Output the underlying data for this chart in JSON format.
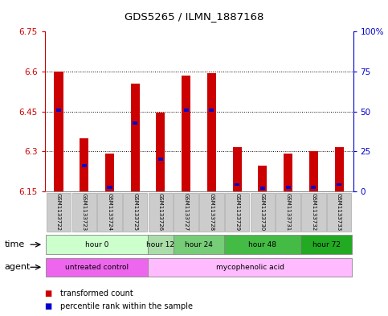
{
  "title": "GDS5265 / ILMN_1887168",
  "samples": [
    "GSM1133722",
    "GSM1133723",
    "GSM1133724",
    "GSM1133725",
    "GSM1133726",
    "GSM1133727",
    "GSM1133728",
    "GSM1133729",
    "GSM1133730",
    "GSM1133731",
    "GSM1133732",
    "GSM1133733"
  ],
  "red_values": [
    6.6,
    6.35,
    6.29,
    6.555,
    6.445,
    6.585,
    6.595,
    6.315,
    6.245,
    6.29,
    6.3,
    6.315
  ],
  "blue_values": [
    6.455,
    6.245,
    6.165,
    6.405,
    6.27,
    6.455,
    6.455,
    6.175,
    6.16,
    6.165,
    6.165,
    6.175
  ],
  "ymin": 6.15,
  "ymax": 6.75,
  "yticks": [
    6.15,
    6.3,
    6.45,
    6.6,
    6.75
  ],
  "ytick_labels": [
    "6.15",
    "6.3",
    "6.45",
    "6.6",
    "6.75"
  ],
  "right_yticks": [
    0,
    25,
    50,
    75,
    100
  ],
  "right_ytick_labels": [
    "0",
    "25",
    "50",
    "75",
    "100%"
  ],
  "dotted_lines": [
    6.3,
    6.45,
    6.6
  ],
  "red_color": "#cc0000",
  "blue_color": "#0000cc",
  "time_groups": [
    {
      "label": "hour 0",
      "start": 0,
      "end": 3,
      "color": "#ccffcc"
    },
    {
      "label": "hour 12",
      "start": 4,
      "end": 4,
      "color": "#aaddaa"
    },
    {
      "label": "hour 24",
      "start": 5,
      "end": 6,
      "color": "#77cc77"
    },
    {
      "label": "hour 48",
      "start": 7,
      "end": 9,
      "color": "#44bb44"
    },
    {
      "label": "hour 72",
      "start": 10,
      "end": 11,
      "color": "#22aa22"
    }
  ],
  "agent_groups": [
    {
      "label": "untreated control",
      "start": 0,
      "end": 3,
      "color": "#ee66ee"
    },
    {
      "label": "mycophenolic acid",
      "start": 4,
      "end": 11,
      "color": "#ffbbff"
    }
  ],
  "legend_red": "transformed count",
  "legend_blue": "percentile rank within the sample",
  "time_label": "time",
  "agent_label": "agent",
  "sample_bg": "#cccccc",
  "axis_left_color": "#cc0000",
  "axis_right_color": "#0000cc"
}
